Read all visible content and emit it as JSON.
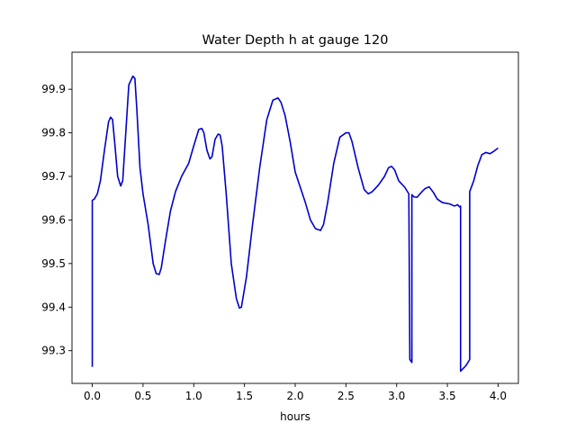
{
  "chart_data": {
    "type": "line",
    "title": "Water Depth h at gauge 120",
    "xlabel": "hours",
    "ylabel": "",
    "xlim": [
      -0.2,
      4.2
    ],
    "ylim": [
      99.225,
      99.985
    ],
    "xticks": [
      0.0,
      0.5,
      1.0,
      1.5,
      2.0,
      2.5,
      3.0,
      3.5,
      4.0
    ],
    "xtick_labels": [
      "0.0",
      "0.5",
      "1.0",
      "1.5",
      "2.0",
      "2.5",
      "3.0",
      "3.5",
      "4.0"
    ],
    "yticks": [
      99.3,
      99.4,
      99.5,
      99.6,
      99.7,
      99.8,
      99.9
    ],
    "ytick_labels": [
      "99.3",
      "99.4",
      "99.5",
      "99.6",
      "99.7",
      "99.8",
      "99.9"
    ],
    "grid": false,
    "legend": "none",
    "series": [
      {
        "name": "",
        "color": "#0000cc",
        "x": [
          0.0,
          0.0,
          0.02,
          0.05,
          0.08,
          0.12,
          0.16,
          0.18,
          0.2,
          0.22,
          0.25,
          0.28,
          0.3,
          0.33,
          0.36,
          0.4,
          0.42,
          0.44,
          0.47,
          0.5,
          0.55,
          0.6,
          0.63,
          0.66,
          0.68,
          0.72,
          0.77,
          0.82,
          0.88,
          0.95,
          1.0,
          1.05,
          1.08,
          1.1,
          1.13,
          1.16,
          1.18,
          1.21,
          1.24,
          1.26,
          1.28,
          1.32,
          1.37,
          1.42,
          1.45,
          1.47,
          1.52,
          1.58,
          1.65,
          1.72,
          1.78,
          1.83,
          1.86,
          1.9,
          1.95,
          2.0,
          2.05,
          2.1,
          2.15,
          2.2,
          2.25,
          2.28,
          2.32,
          2.38,
          2.44,
          2.5,
          2.53,
          2.56,
          2.62,
          2.68,
          2.72,
          2.76,
          2.82,
          2.88,
          2.92,
          2.95,
          2.98,
          3.02,
          3.08,
          3.12,
          3.13,
          3.15,
          3.15,
          3.17,
          3.2,
          3.25,
          3.28,
          3.32,
          3.36,
          3.4,
          3.45,
          3.52,
          3.57,
          3.6,
          3.62,
          3.63,
          3.63,
          3.68,
          3.7,
          3.72,
          3.72,
          3.76,
          3.8,
          3.84,
          3.88,
          3.92,
          3.96,
          4.0
        ],
        "y": [
          99.263,
          99.645,
          99.648,
          99.66,
          99.69,
          99.76,
          99.825,
          99.836,
          99.83,
          99.78,
          99.7,
          99.678,
          99.69,
          99.8,
          99.91,
          99.93,
          99.925,
          99.85,
          99.72,
          99.66,
          99.59,
          99.5,
          99.477,
          99.475,
          99.49,
          99.55,
          99.62,
          99.665,
          99.7,
          99.73,
          99.77,
          99.808,
          99.81,
          99.8,
          99.76,
          99.74,
          99.745,
          99.785,
          99.797,
          99.795,
          99.77,
          99.66,
          99.5,
          99.42,
          99.398,
          99.4,
          99.47,
          99.59,
          99.72,
          99.83,
          99.875,
          99.88,
          99.87,
          99.84,
          99.78,
          99.71,
          99.675,
          99.64,
          99.6,
          99.58,
          99.576,
          99.59,
          99.64,
          99.73,
          99.79,
          99.8,
          99.8,
          99.78,
          99.72,
          99.67,
          99.66,
          99.665,
          99.68,
          99.7,
          99.72,
          99.723,
          99.715,
          99.69,
          99.675,
          99.66,
          99.28,
          99.273,
          99.658,
          99.653,
          99.652,
          99.665,
          99.672,
          99.676,
          99.664,
          99.648,
          99.64,
          99.637,
          99.632,
          99.635,
          99.63,
          99.632,
          99.253,
          99.265,
          99.272,
          99.28,
          99.665,
          99.69,
          99.725,
          99.75,
          99.755,
          99.752,
          99.758,
          99.765
        ]
      }
    ]
  }
}
